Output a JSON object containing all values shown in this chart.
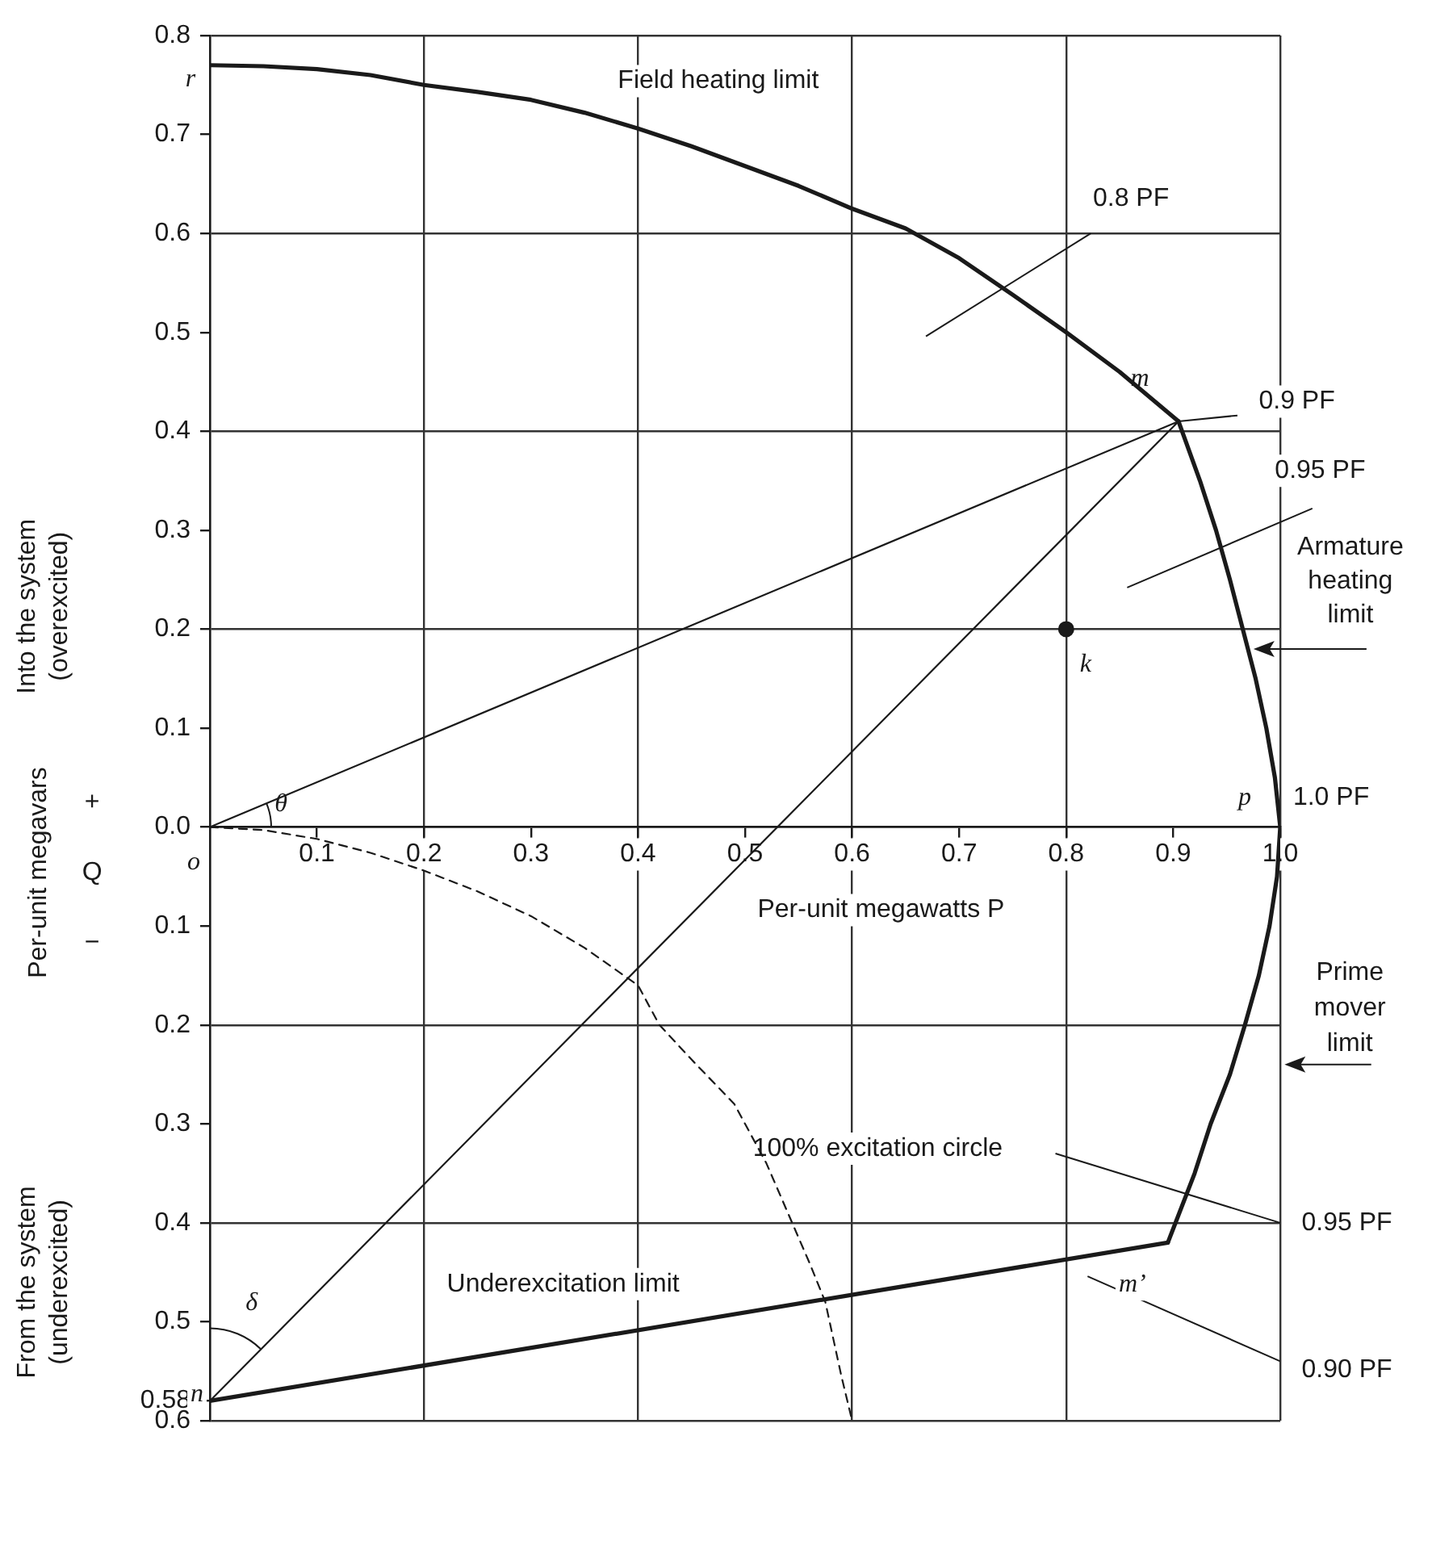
{
  "chart_data": {
    "type": "line",
    "xlabel": "Per-unit megawatts P",
    "ylabel": "Per-unit megavars",
    "xlim": [
      0,
      1.0
    ],
    "ylim": [
      -0.6,
      0.8
    ],
    "xticks": [
      0.1,
      0.2,
      0.3,
      0.4,
      0.5,
      0.6,
      0.7,
      0.8,
      0.9,
      {
        "value": 1.0,
        "label": "1.0"
      }
    ],
    "yticks": [
      0.8,
      0.7,
      0.6,
      0.5,
      0.4,
      0.3,
      0.2,
      0.1,
      {
        "value": 0,
        "label": "0.0"
      },
      {
        "value": -0.1,
        "label": "0.1"
      },
      {
        "value": -0.2,
        "label": "0.2"
      },
      {
        "value": -0.3,
        "label": "0.3"
      },
      {
        "value": -0.4,
        "label": "0.4"
      },
      {
        "value": -0.5,
        "label": "0.5"
      },
      {
        "value": -0.58,
        "label": "0.58"
      },
      {
        "value": -0.6,
        "label": "0.6"
      }
    ],
    "grid": true,
    "legend": false,
    "marker": "none",
    "series": [
      {
        "color": "#1a1a1a",
        "x": [
          0,
          0.05,
          0.1,
          0.15,
          0.2,
          0.25,
          0.3,
          0.35,
          0.4,
          0.45,
          0.5,
          0.55,
          0.6,
          0.65,
          0.7,
          0.75,
          0.8,
          0.85,
          0.905
        ],
        "values": [
          0.77,
          0.769,
          0.766,
          0.76,
          0.75,
          0.743,
          0.735,
          0.722,
          0.706,
          0.688,
          0.668,
          0.648,
          0.625,
          0.605,
          0.575,
          0.538,
          0.5,
          0.46,
          0.41
        ]
      },
      {
        "color": "#1a1a1a",
        "x": [
          0.905,
          0.925,
          0.94,
          0.953,
          0.965,
          0.977,
          0.987,
          0.995,
          1.0,
          0.997,
          0.99,
          0.98,
          0.967,
          0.953,
          0.935,
          0.92,
          0.895
        ],
        "values": [
          0.41,
          0.35,
          0.3,
          0.25,
          0.2,
          0.15,
          0.1,
          0.05,
          0,
          -0.05,
          -0.1,
          -0.15,
          -0.2,
          -0.25,
          -0.3,
          -0.35,
          -0.42
        ]
      },
      {
        "color": "#1a1a1a",
        "x": [
          0,
          0.895
        ],
        "values": [
          -0.58,
          -0.42
        ]
      },
      {
        "color": "#1a1a1a",
        "line_style": "dashed",
        "x": [
          0,
          0.05,
          0.1,
          0.15,
          0.2,
          0.25,
          0.3,
          0.35,
          0.4,
          0.42,
          0.45,
          0.49,
          0.52,
          0.54,
          0.56,
          0.575,
          0.59,
          0.6
        ],
        "values": [
          0,
          -0.003,
          -0.012,
          -0.026,
          -0.044,
          -0.065,
          -0.09,
          -0.122,
          -0.16,
          -0.2,
          -0.235,
          -0.28,
          -0.34,
          -0.39,
          -0.44,
          -0.48,
          -0.555,
          -0.6
        ]
      },
      {
        "color": "#1a1a1a",
        "x": [
          0,
          0.905,
          0
        ],
        "values": [
          0,
          0.41,
          -0.58
        ]
      },
      {
        "type": "scatter",
        "marker": "circle",
        "color": "#1a1a1a",
        "x": [
          0.8
        ],
        "values": [
          0.2
        ]
      }
    ],
    "annotations": [
      {
        "text": "r",
        "x": 0,
        "y": 0.77
      },
      "Field heating limit",
      "0.8 PF",
      {
        "text": "m",
        "x": 0.905,
        "y": 0.41
      },
      "0.9 PF",
      "0.95 PF",
      {
        "text": "k",
        "x": 0.8,
        "y": 0.2
      },
      {
        "text": "Armature heating limit",
        "x": 0.972,
        "y": 0.18
      },
      {
        "text": "p",
        "x": 1.0,
        "y": 0
      },
      "1.0 PF",
      {
        "text": "θ",
        "x": 0,
        "y": 0
      },
      {
        "text": "o",
        "x": 0,
        "y": 0
      },
      "Q",
      "+",
      "−",
      "Into the system (overexcited)",
      "From the system (underexcited)",
      "100% excitation circle",
      "0.95 PF",
      "0.90 PF",
      "Prime mover limit",
      {
        "text": "m’",
        "x": 0.895,
        "y": -0.42
      },
      "Underexcitation limit",
      "δ",
      {
        "text": "n",
        "x": 0,
        "y": -0.58
      }
    ]
  }
}
